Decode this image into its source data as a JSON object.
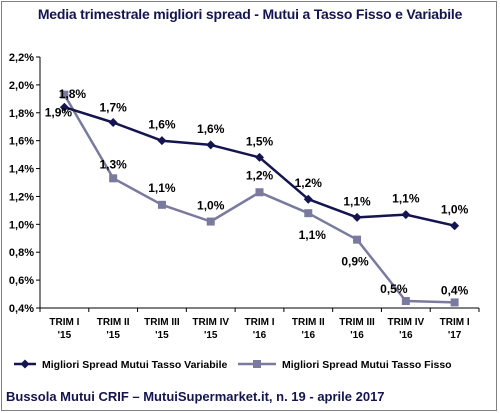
{
  "title": "Media trimestrale migliori spread - Mutui a Tasso Fisso e Variabile",
  "footer": "Bussola Mutui CRIF – MutuiSupermarket.it, n. 19 - aprile 2017",
  "chart_data": {
    "type": "line",
    "title": "Media trimestrale migliori spread - Mutui a Tasso Fisso e Variabile",
    "categories": [
      [
        "TRIM I",
        "'15"
      ],
      [
        "TRIM II",
        "'15"
      ],
      [
        "TRIM III",
        "'15"
      ],
      [
        "TRIM IV",
        "'15"
      ],
      [
        "TRIM I",
        "'16"
      ],
      [
        "TRIM II",
        "'16"
      ],
      [
        "TRIM III",
        "'16"
      ],
      [
        "TRIM IV",
        "'16"
      ],
      [
        "TRIM I",
        "'17"
      ]
    ],
    "y_ticks": [
      "0,4%",
      "0,6%",
      "0,8%",
      "1,0%",
      "1,2%",
      "1,4%",
      "1,6%",
      "1,8%",
      "2,0%",
      "2,2%"
    ],
    "ylim": [
      0.4,
      2.2
    ],
    "ystep": 0.2,
    "grid": false,
    "legend_position": "bottom",
    "series": [
      {
        "name": "Migliori Spread Mutui Tasso Variabile",
        "color": "#141450",
        "marker": "diamond",
        "values": [
          1.84,
          1.73,
          1.6,
          1.57,
          1.48,
          1.18,
          1.05,
          1.07,
          0.99
        ],
        "labels": [
          "1,8%",
          "1,7%",
          "1,6%",
          "1,6%",
          "1,5%",
          "1,2%",
          "1,1%",
          "1,1%",
          "1,0%"
        ]
      },
      {
        "name": "Migliori Spread Mutui Tasso Fisso",
        "color": "#7a7a9e",
        "marker": "square",
        "values": [
          1.93,
          1.33,
          1.14,
          1.02,
          1.23,
          1.08,
          0.89,
          0.45,
          0.44
        ],
        "labels": [
          "1,9%",
          "1,3%",
          "1,1%",
          "1,0%",
          "1,2%",
          "1,1%",
          "0,9%",
          "0,5%",
          "0,4%"
        ]
      }
    ]
  }
}
